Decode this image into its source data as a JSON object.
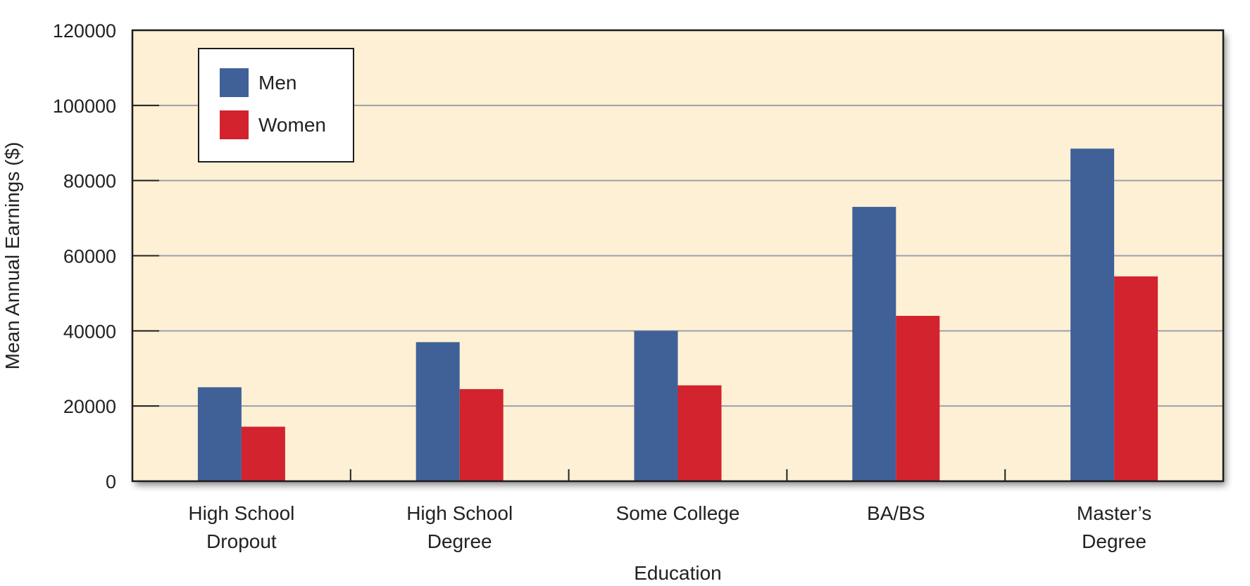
{
  "chart_data": {
    "type": "bar",
    "title": "",
    "xlabel": "Education",
    "ylabel": "Mean Annual Earnings ($)",
    "ylim": [
      0,
      120000
    ],
    "yticks": [
      "0",
      "20000",
      "40000",
      "60000",
      "80000",
      "100000",
      "120000"
    ],
    "categories": [
      [
        "High School",
        "Dropout"
      ],
      [
        "High School",
        "Degree"
      ],
      [
        "Some College"
      ],
      [
        "BA/BS"
      ],
      [
        "Master’s",
        "Degree"
      ]
    ],
    "series": [
      {
        "name": "Men",
        "color": "#3f6198",
        "values": [
          25000,
          37000,
          40000,
          73000,
          88500
        ]
      },
      {
        "name": "Women",
        "color": "#d2232e",
        "values": [
          14500,
          24500,
          25500,
          44000,
          54500
        ]
      }
    ],
    "grid": true,
    "legend": "top-left",
    "plot_background": "#fdf0d4"
  }
}
